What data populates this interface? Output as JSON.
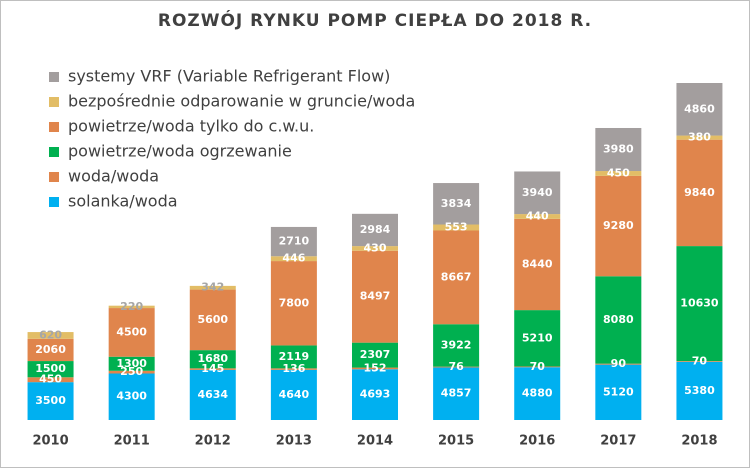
{
  "chart_data": {
    "type": "stacked_bar",
    "title": "ROZWÓJ RYNKU POMP CIEPŁA DO 2018 R.",
    "categories": [
      "2010",
      "2011",
      "2012",
      "2013",
      "2014",
      "2015",
      "2016",
      "2017",
      "2018"
    ],
    "series": [
      {
        "name": "solanka/woda",
        "color": "#00b0f0",
        "values": [
          3500,
          4300,
          4634,
          4640,
          4693,
          4857,
          4880,
          5120,
          5380
        ]
      },
      {
        "name": "woda/woda",
        "color": "#e0854c",
        "values": [
          450,
          250,
          145,
          136,
          152,
          76,
          70,
          90,
          70
        ]
      },
      {
        "name": "powietrze/woda ogrzewanie",
        "color": "#00b050",
        "values": [
          1500,
          1300,
          1680,
          2119,
          2307,
          3922,
          5210,
          8080,
          10630
        ]
      },
      {
        "name": "powietrze/woda tylko do c.w.u.",
        "color": "#e0854c",
        "values": [
          2060,
          4500,
          5600,
          7800,
          8497,
          8667,
          8440,
          9280,
          9840
        ]
      },
      {
        "name": "bezpośrednie odparowanie w gruncie/woda",
        "color": "#e2bd66",
        "values": [
          620,
          220,
          342,
          446,
          430,
          553,
          440,
          450,
          380
        ]
      },
      {
        "name": "systemy VRF (Variable Refrigerant Flow)",
        "color": "#a39e9e",
        "values": [
          null,
          null,
          null,
          2710,
          2984,
          3834,
          3940,
          3980,
          4860
        ]
      }
    ]
  }
}
